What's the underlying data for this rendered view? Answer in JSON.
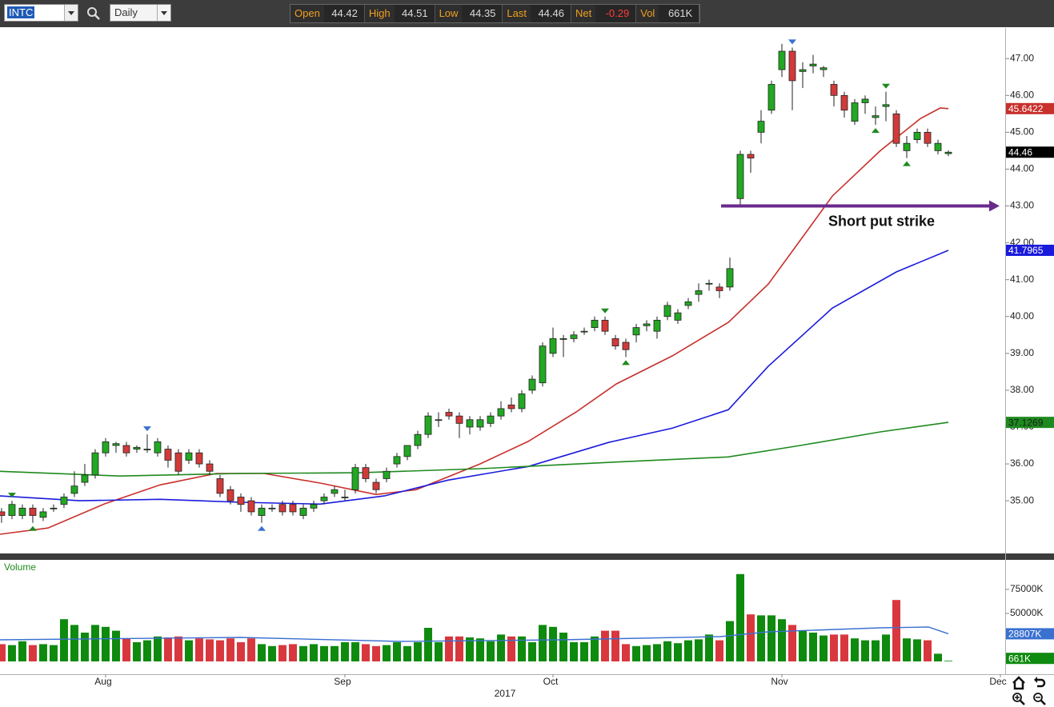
{
  "toolbar": {
    "symbol": "INTC",
    "interval": "Daily",
    "fields": [
      {
        "name": "Open",
        "value": "44.42"
      },
      {
        "name": "High",
        "value": "44.51"
      },
      {
        "name": "Low",
        "value": "44.35"
      },
      {
        "name": "Last",
        "value": "44.46"
      },
      {
        "name": "Net",
        "value": "-0.29",
        "color": "#ff3b3b"
      },
      {
        "name": "Vol",
        "value": "661K"
      }
    ]
  },
  "chart_data": [
    {
      "type": "candlestick",
      "up_color": "#22a822",
      "down_color": "#d23a3a",
      "xlim": [
        -0.15,
        96.46
      ],
      "ylim": [
        33.57,
        47.83
      ],
      "xticks": [
        {
          "value": 10,
          "label": "Aug"
        },
        {
          "value": 33,
          "label": "Sep"
        },
        {
          "value": 53,
          "label": "Oct"
        },
        {
          "value": 75,
          "label": "Nov"
        },
        {
          "value": 96,
          "label": "Dec"
        }
      ],
      "year": "2017",
      "yticks": [
        {
          "value": 35,
          "label": "35.00"
        },
        {
          "value": 36,
          "label": "36.00"
        },
        {
          "value": 37,
          "label": "37.00"
        },
        {
          "value": 38,
          "label": "38.00"
        },
        {
          "value": 39,
          "label": "39.00"
        },
        {
          "value": 40,
          "label": "40.00"
        },
        {
          "value": 41,
          "label": "41.00"
        },
        {
          "value": 42,
          "label": "42.00"
        },
        {
          "value": 43,
          "label": "43.00"
        },
        {
          "value": 44,
          "label": "44.00"
        },
        {
          "value": 45,
          "label": "45.00"
        },
        {
          "value": 46,
          "label": "46.00"
        },
        {
          "value": 47,
          "label": "47.00"
        }
      ],
      "open": [
        34.7,
        34.6,
        34.6,
        34.8,
        34.55,
        34.8,
        34.9,
        35.2,
        35.5,
        35.7,
        36.3,
        36.5,
        36.5,
        36.4,
        36.4,
        36.3,
        36.4,
        36.3,
        36.1,
        36.3,
        36.0,
        35.6,
        35.3,
        35.1,
        35.0,
        34.6,
        34.8,
        34.9,
        34.9,
        34.6,
        34.8,
        35.0,
        35.2,
        35.1,
        35.3,
        35.9,
        35.5,
        35.6,
        36.0,
        36.2,
        36.5,
        36.8,
        37.2,
        37.4,
        37.3,
        37.0,
        37.0,
        37.1,
        37.3,
        37.6,
        37.5,
        38.0,
        38.2,
        39.0,
        39.4,
        39.4,
        39.6,
        39.7,
        39.9,
        39.4,
        39.3,
        39.5,
        39.75,
        39.6,
        40.0,
        39.9,
        40.3,
        40.6,
        40.9,
        40.8,
        40.8,
        43.2,
        44.4,
        45.0,
        45.6,
        46.7,
        47.2,
        46.65,
        46.8,
        46.7,
        46.3,
        46.0,
        45.3,
        45.8,
        45.4,
        45.7,
        45.5,
        44.5,
        44.8,
        45.0,
        44.5,
        44.42
      ],
      "high": [
        34.8,
        35.0,
        34.9,
        34.9,
        34.8,
        34.9,
        35.2,
        35.8,
        36.0,
        36.4,
        36.7,
        36.6,
        36.6,
        36.5,
        36.8,
        36.7,
        36.5,
        36.4,
        36.4,
        36.4,
        36.1,
        35.7,
        35.4,
        35.2,
        35.1,
        34.9,
        34.9,
        35.0,
        35.0,
        34.9,
        35.0,
        35.2,
        35.4,
        35.3,
        36.0,
        36.0,
        35.6,
        35.9,
        36.3,
        36.5,
        36.9,
        37.4,
        37.4,
        37.5,
        37.4,
        37.3,
        37.3,
        37.4,
        37.7,
        37.8,
        38.0,
        38.4,
        39.3,
        39.7,
        39.5,
        39.6,
        39.7,
        40.0,
        40.0,
        39.5,
        39.4,
        39.8,
        39.9,
        40.0,
        40.4,
        40.2,
        40.5,
        40.9,
        41.0,
        40.9,
        41.6,
        44.5,
        44.5,
        45.6,
        46.4,
        47.4,
        47.3,
        46.9,
        47.1,
        46.8,
        46.4,
        46.1,
        45.9,
        46.0,
        45.7,
        46.1,
        45.6,
        44.9,
        45.1,
        45.1,
        44.8,
        44.51
      ],
      "low": [
        34.4,
        34.5,
        34.5,
        34.4,
        34.45,
        34.7,
        34.8,
        35.1,
        35.4,
        35.6,
        36.2,
        36.3,
        36.2,
        36.3,
        36.3,
        36.2,
        35.9,
        35.7,
        36.0,
        35.9,
        35.7,
        35.1,
        34.9,
        34.7,
        34.6,
        34.4,
        34.7,
        34.6,
        34.6,
        34.5,
        34.7,
        34.9,
        35.1,
        35.0,
        35.2,
        35.5,
        35.2,
        35.5,
        35.9,
        36.1,
        36.4,
        36.7,
        37.0,
        37.2,
        36.7,
        36.8,
        36.9,
        37.0,
        37.2,
        37.4,
        37.4,
        37.9,
        38.1,
        38.9,
        38.9,
        39.3,
        39.5,
        39.6,
        39.5,
        39.1,
        38.9,
        39.3,
        39.6,
        39.4,
        39.9,
        39.8,
        40.2,
        40.4,
        40.7,
        40.5,
        40.7,
        43.0,
        43.9,
        44.7,
        45.5,
        46.5,
        45.6,
        46.2,
        46.6,
        46.5,
        45.7,
        45.4,
        45.2,
        45.5,
        45.2,
        45.3,
        44.6,
        44.3,
        44.7,
        44.6,
        44.4,
        44.35
      ],
      "close": [
        34.6,
        34.9,
        34.8,
        34.6,
        34.7,
        34.8,
        35.1,
        35.4,
        35.7,
        36.3,
        36.6,
        36.55,
        36.3,
        36.45,
        36.4,
        36.6,
        36.1,
        35.8,
        36.3,
        36.0,
        35.8,
        35.2,
        35.0,
        34.9,
        34.7,
        34.8,
        34.8,
        34.7,
        34.7,
        34.8,
        34.9,
        35.1,
        35.3,
        35.1,
        35.9,
        35.6,
        35.3,
        35.8,
        36.2,
        36.5,
        36.8,
        37.3,
        37.2,
        37.3,
        37.1,
        37.2,
        37.2,
        37.3,
        37.5,
        37.5,
        37.9,
        38.3,
        39.2,
        39.4,
        39.4,
        39.5,
        39.6,
        39.9,
        39.6,
        39.2,
        39.1,
        39.7,
        39.8,
        39.9,
        40.3,
        40.1,
        40.4,
        40.7,
        40.9,
        40.7,
        41.3,
        44.4,
        44.3,
        45.3,
        46.3,
        47.2,
        46.4,
        46.7,
        46.85,
        46.75,
        46.0,
        45.6,
        45.8,
        45.9,
        45.45,
        45.75,
        44.7,
        44.7,
        45.0,
        44.7,
        44.7,
        44.46
      ],
      "series": [
        {
          "color": "#c8302c",
          "tag": "45.6422",
          "x": [
            -0.15,
            4.46,
            9.85,
            15.23,
            20.62,
            25.23,
            30.62,
            36.0,
            39.85,
            46.0,
            50.62,
            55.23,
            59.08,
            64.46,
            69.85,
            73.69,
            76.77,
            79.85,
            84.46,
            88.31,
            90.23,
            91
          ],
          "values": [
            34.09,
            34.26,
            34.91,
            35.43,
            35.74,
            35.74,
            35.48,
            35.17,
            35.3,
            36.0,
            36.61,
            37.41,
            38.17,
            38.93,
            39.84,
            40.88,
            42.07,
            43.27,
            44.5,
            45.37,
            45.66,
            45.6422
          ]
        },
        {
          "color": "#1a1adc",
          "tag": "41.7965",
          "x": [
            -0.15,
            7.54,
            15.23,
            22.92,
            30.62,
            36.77,
            42.92,
            50.62,
            58.31,
            64.46,
            69.85,
            73.69,
            79.85,
            86.0,
            91
          ],
          "values": [
            35.13,
            35.0,
            35.04,
            34.96,
            34.91,
            35.13,
            35.56,
            35.93,
            36.58,
            36.97,
            37.47,
            38.65,
            40.23,
            41.21,
            41.7965
          ]
        },
        {
          "color": "#1e8a1e",
          "tag": "37.1269",
          "tag_text": "#1a1a1a",
          "x": [
            -0.15,
            11.38,
            22.92,
            34.46,
            46.0,
            58.31,
            69.85,
            76.77,
            84.46,
            91
          ],
          "values": [
            35.8,
            35.67,
            35.74,
            35.76,
            35.87,
            36.04,
            36.19,
            36.5,
            36.87,
            37.1269
          ]
        }
      ],
      "last_tag_color": "#000000",
      "pivots": [
        {
          "index": 1,
          "side": "high",
          "color": "#1e8a1e"
        },
        {
          "index": 14,
          "side": "high",
          "color": "#3a70d0"
        },
        {
          "index": 58,
          "side": "high",
          "color": "#1e8a1e"
        },
        {
          "index": 76,
          "side": "high",
          "color": "#3a70d0"
        },
        {
          "index": 85,
          "side": "high",
          "color": "#1e8a1e"
        },
        {
          "index": 3,
          "side": "low",
          "color": "#1e8a1e"
        },
        {
          "index": 25,
          "side": "low",
          "color": "#3a70d0"
        },
        {
          "index": 60,
          "side": "low",
          "color": "#1e8a1e"
        },
        {
          "index": 84,
          "side": "low",
          "color": "#1e8a1e"
        },
        {
          "index": 87,
          "side": "low",
          "color": "#1e8a1e"
        }
      ],
      "annotation": {
        "text": "Short put strike",
        "value": 43,
        "color": "#6a2a8c"
      }
    },
    {
      "type": "bar",
      "title": "Volume",
      "ylim": [
        0,
        103333
      ],
      "yticks": [
        {
          "value": 50000,
          "label": "50000K"
        },
        {
          "value": 75000,
          "label": "75000K"
        }
      ],
      "up_color": "#0e8a0e",
      "down_color": "#d8373e",
      "values": [
        18000,
        17000,
        21000,
        17000,
        18000,
        17000,
        44000,
        38000,
        30000,
        38000,
        36000,
        32000,
        24000,
        20000,
        22000,
        26000,
        25000,
        26000,
        22000,
        24000,
        23000,
        22000,
        24000,
        20000,
        24000,
        18000,
        16000,
        17000,
        18000,
        16000,
        18000,
        16000,
        16000,
        20000,
        20000,
        18000,
        16000,
        17000,
        20000,
        16000,
        20000,
        35000,
        20000,
        26000,
        26000,
        25000,
        24000,
        21000,
        28000,
        26000,
        26000,
        20000,
        38000,
        36000,
        30000,
        20000,
        20000,
        26000,
        32000,
        32000,
        18000,
        16000,
        17000,
        18000,
        21000,
        19000,
        22000,
        23000,
        28000,
        22000,
        42000,
        91000,
        49000,
        48000,
        48000,
        44000,
        38000,
        32000,
        30000,
        27000,
        28000,
        28000,
        24000,
        22000,
        22000,
        28000,
        64000,
        24000,
        23000,
        22000,
        8000,
        661
      ],
      "last_tag": "661K",
      "last_tag_color": "#0e8a0e",
      "series": [
        {
          "color": "#3a70d0",
          "tag": "28807K",
          "x": [
            -0.15,
            22.92,
            38.31,
            53.69,
            69.08,
            73.69,
            84.46,
            89.08,
            91
          ],
          "values": [
            22500,
            25000,
            20800,
            22500,
            25800,
            30800,
            35000,
            35800,
            28807
          ]
        }
      ]
    }
  ]
}
